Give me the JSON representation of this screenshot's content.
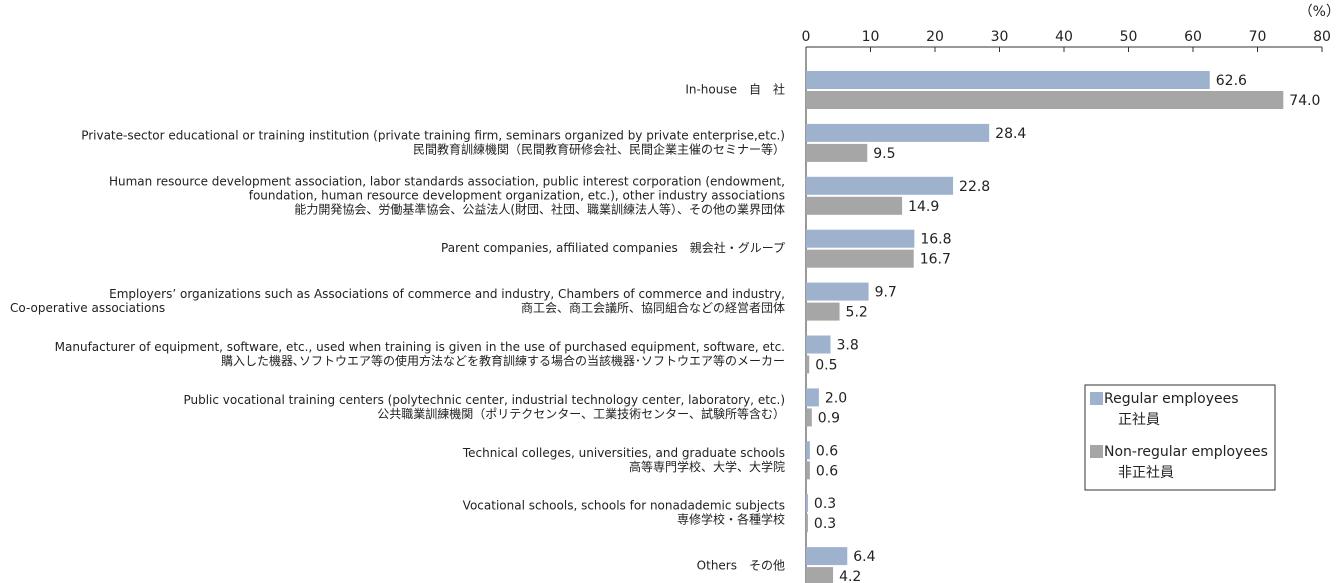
{
  "chart_data": {
    "type": "hbar",
    "unit": "（%）",
    "categories": [
      [
        "In-house　自　社"
      ],
      [
        "Private-sector educational or training institution (private training firm, seminars organized by private enterprise,etc.)",
        "民間教育訓練機関（民間教育研修会社、民間企業主催のセミナー等）"
      ],
      [
        "Human resource development association, labor standards association, public interest corporation (endowment,",
        "foundation, human resource development organization, etc.), other industry associations",
        "能力開発協会、労働基準協会、公益法人(財団、社団、職業訓練法人等）、その他の業界団体"
      ],
      [
        "Parent companies, affiliated companies　親会社・グループ"
      ],
      [
        "Employers’ organizations such as Associations of commerce and industry, Chambers of commerce and industry,",
        [
          "Co-operative associations",
          "商工会、商工会議所、協同組合などの経営者団体"
        ]
      ],
      [
        "Manufacturer of equipment, software, etc., used when training is given in the use of purchased equipment, software, etc.",
        "購入した機器､ソフトウエア等の使用方法などを教育訓練する場合の当該機器･ソフトウエア等のメーカー"
      ],
      [
        "Public vocational training centers (polytechnic center, industrial technology center, laboratory, etc.)",
        "公共職業訓練機関（ポリテクセンター、工業技術センター、試験所等含む）"
      ],
      [
        "Technical colleges, universities, and graduate schools",
        "高等専門学校、大学、大学院"
      ],
      [
        "Vocational schools, schools for nonadademic subjects",
        "専修学校・各種学校"
      ],
      [
        "Others　その他"
      ]
    ],
    "series": [
      {
        "name": [
          "Regular employees",
          "正社員"
        ],
        "color": "#9fb2cd",
        "values": [
          62.6,
          28.4,
          22.8,
          16.8,
          9.7,
          3.8,
          2.0,
          0.6,
          0.3,
          6.4
        ],
        "value_labels": [
          "62.6",
          "28.4",
          "22.8",
          "16.8",
          "9.7",
          "3.8",
          "2.0",
          "0.6",
          "0.3",
          "6.4"
        ]
      },
      {
        "name": [
          "Non-regular employees",
          "非正社員"
        ],
        "color": "#a6a6a6",
        "values": [
          74.0,
          9.5,
          14.9,
          16.7,
          5.2,
          0.5,
          0.9,
          0.6,
          0.3,
          4.2
        ],
        "value_labels": [
          "74.0",
          "9.5",
          "14.9",
          "16.7",
          "5.2",
          "0.5",
          "0.9",
          "0.6",
          "0.3",
          "4.2"
        ]
      }
    ],
    "xlim": [
      0,
      80
    ],
    "xticks": [
      0,
      10,
      20,
      30,
      40,
      50,
      60,
      70,
      80
    ]
  }
}
